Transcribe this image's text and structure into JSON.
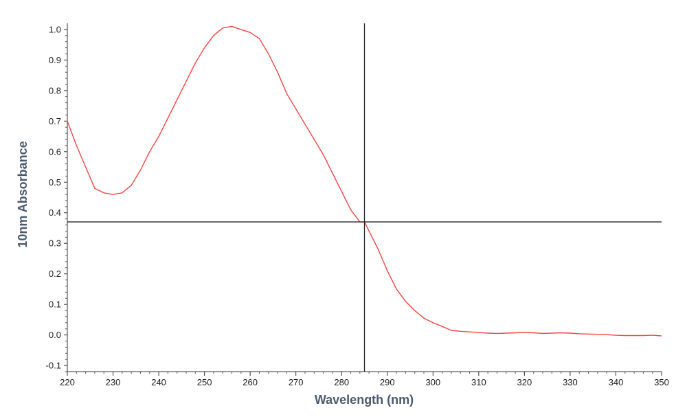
{
  "chart_data": {
    "type": "line",
    "title": "",
    "xlabel": "Wavelength (nm)",
    "ylabel": "10nm Absorbance",
    "xlim": [
      220,
      350
    ],
    "ylim": [
      -0.12,
      1.02
    ],
    "x_ticks": [
      220,
      230,
      240,
      250,
      260,
      270,
      280,
      290,
      300,
      310,
      320,
      330,
      340,
      350
    ],
    "x_tick_labels": [
      "220",
      "230",
      "240",
      "250",
      "260",
      "270",
      "280",
      "290",
      "300",
      "310",
      "320",
      "330",
      "340",
      "350"
    ],
    "y_ticks": [
      1.0,
      0.9,
      0.8,
      0.7,
      0.6,
      0.5,
      0.4,
      0.3,
      0.2,
      0.1,
      0.0,
      -0.1
    ],
    "y_tick_labels": [
      "1.0",
      "0.9",
      "0.8",
      "0.7",
      "0.6",
      "0.5",
      "0.4",
      "0.3",
      "0.2",
      "0.1",
      "0.0",
      "-0.1"
    ],
    "grid": false,
    "series": [
      {
        "color": "#ff4040",
        "x": [
          220,
          222,
          224,
          226,
          228,
          230,
          232,
          234,
          236,
          238,
          240,
          242,
          244,
          246,
          248,
          250,
          252,
          254,
          256,
          258,
          260,
          262,
          264,
          266,
          268,
          270,
          272,
          274,
          276,
          278,
          280,
          282,
          284,
          285,
          286,
          288,
          290,
          292,
          294,
          296,
          298,
          300,
          302,
          304,
          306,
          308,
          310,
          312,
          314,
          316,
          318,
          320,
          322,
          324,
          326,
          328,
          330,
          332,
          334,
          336,
          338,
          340,
          342,
          344,
          346,
          348,
          350
        ],
        "y": [
          0.7,
          0.62,
          0.55,
          0.48,
          0.465,
          0.46,
          0.465,
          0.49,
          0.54,
          0.6,
          0.65,
          0.71,
          0.77,
          0.83,
          0.89,
          0.94,
          0.98,
          1.005,
          1.01,
          1.0,
          0.99,
          0.97,
          0.92,
          0.86,
          0.79,
          0.74,
          0.69,
          0.64,
          0.59,
          0.53,
          0.47,
          0.41,
          0.37,
          0.37,
          0.34,
          0.28,
          0.21,
          0.15,
          0.11,
          0.08,
          0.055,
          0.04,
          0.028,
          0.015,
          0.012,
          0.01,
          0.008,
          0.006,
          0.005,
          0.006,
          0.007,
          0.008,
          0.007,
          0.005,
          0.006,
          0.007,
          0.006,
          0.004,
          0.003,
          0.002,
          0.001,
          -0.001,
          -0.002,
          -0.002,
          -0.002,
          -0.001,
          -0.003
        ]
      }
    ],
    "crosshair": {
      "x": 285,
      "y": 0.37,
      "color": "#222222"
    }
  }
}
